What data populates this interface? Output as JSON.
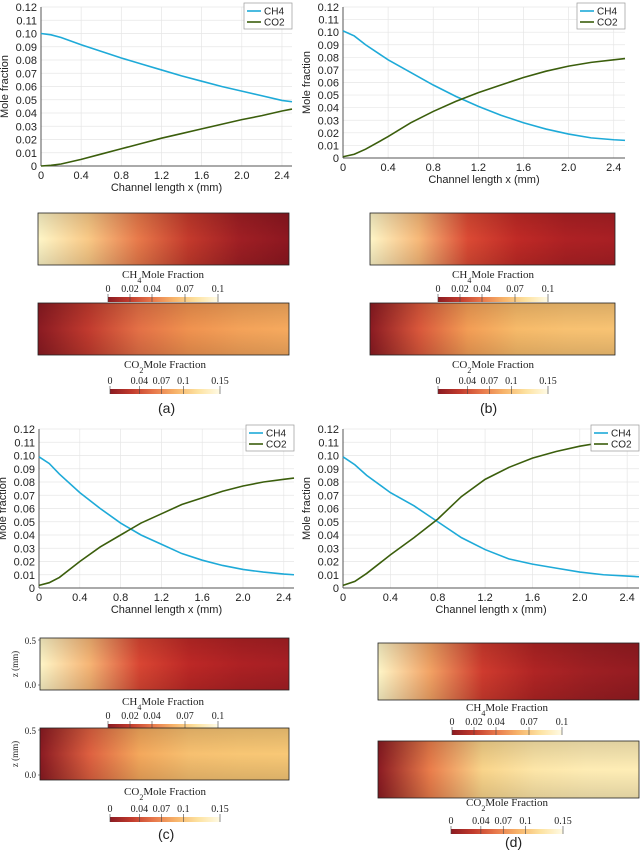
{
  "chart_data": [
    {
      "id": "a",
      "type": "line",
      "xlabel": "Channel length x (mm)",
      "ylabel": "Mole fraction",
      "xlim": [
        0,
        2.5
      ],
      "ylim": [
        0,
        0.12
      ],
      "xticks": [
        "0",
        "0.4",
        "0.8",
        "1.2",
        "1.6",
        "2.0",
        "2.4"
      ],
      "yticks": [
        "0",
        "0.01",
        "0.02",
        "0.03",
        "0.04",
        "0.05",
        "0.06",
        "0.07",
        "0.08",
        "0.09",
        "0.10",
        "0.11",
        "0.12"
      ],
      "grid": true,
      "legend": "top-right",
      "series": [
        {
          "name": "CH4",
          "color": "#1eaad8",
          "x": [
            0,
            0.1,
            0.2,
            0.4,
            0.6,
            0.8,
            1.0,
            1.2,
            1.4,
            1.6,
            1.8,
            2.0,
            2.2,
            2.4,
            2.5
          ],
          "y": [
            0.1,
            0.099,
            0.097,
            0.0915,
            0.0865,
            0.0815,
            0.077,
            0.0725,
            0.068,
            0.064,
            0.06,
            0.0565,
            0.053,
            0.0495,
            0.0485
          ]
        },
        {
          "name": "CO2",
          "color": "#3b5e0c",
          "x": [
            0,
            0.1,
            0.2,
            0.4,
            0.6,
            0.8,
            1.0,
            1.2,
            1.4,
            1.6,
            1.8,
            2.0,
            2.2,
            2.4,
            2.5
          ],
          "y": [
            0.0,
            0.0005,
            0.0015,
            0.005,
            0.009,
            0.013,
            0.017,
            0.021,
            0.0245,
            0.028,
            0.0315,
            0.035,
            0.038,
            0.0415,
            0.043
          ]
        }
      ]
    },
    {
      "id": "b",
      "type": "line",
      "xlabel": "Channel length x (mm)",
      "ylabel": "Mole fraction",
      "xlim": [
        0,
        2.5
      ],
      "ylim": [
        0,
        0.12
      ],
      "xticks": [
        "0",
        "0.4",
        "0.8",
        "1.2",
        "1.6",
        "2.0",
        "2.4"
      ],
      "yticks": [
        "0",
        "0.01",
        "0.02",
        "0.03",
        "0.04",
        "0.05",
        "0.06",
        "0.07",
        "0.08",
        "0.09",
        "0.10",
        "0.11",
        "0.12"
      ],
      "grid": true,
      "legend": "top-right",
      "series": [
        {
          "name": "CH4",
          "color": "#1eaad8",
          "x": [
            0,
            0.1,
            0.2,
            0.4,
            0.6,
            0.8,
            1.0,
            1.2,
            1.4,
            1.6,
            1.8,
            2.0,
            2.2,
            2.4,
            2.5
          ],
          "y": [
            0.101,
            0.097,
            0.09,
            0.078,
            0.068,
            0.058,
            0.049,
            0.041,
            0.034,
            0.028,
            0.023,
            0.019,
            0.016,
            0.0145,
            0.014
          ]
        },
        {
          "name": "CO2",
          "color": "#3b5e0c",
          "x": [
            0,
            0.1,
            0.2,
            0.4,
            0.6,
            0.8,
            1.0,
            1.2,
            1.4,
            1.6,
            1.8,
            2.0,
            2.2,
            2.4,
            2.5
          ],
          "y": [
            0.001,
            0.003,
            0.007,
            0.017,
            0.028,
            0.037,
            0.045,
            0.052,
            0.058,
            0.064,
            0.069,
            0.073,
            0.076,
            0.078,
            0.079
          ]
        }
      ]
    },
    {
      "id": "c",
      "type": "line",
      "xlabel": "Channel length x (mm)",
      "ylabel": "Mole fraction",
      "xlim": [
        0,
        2.5
      ],
      "ylim": [
        0,
        0.12
      ],
      "xticks": [
        "0",
        "0.4",
        "0.8",
        "1.2",
        "1.6",
        "2.0",
        "2.4"
      ],
      "yticks": [
        "0",
        "0.01",
        "0.02",
        "0.03",
        "0.04",
        "0.05",
        "0.06",
        "0.07",
        "0.08",
        "0.09",
        "0.10",
        "0.11",
        "0.12"
      ],
      "grid": true,
      "legend": "top-right",
      "series": [
        {
          "name": "CH4",
          "color": "#1eaad8",
          "x": [
            0,
            0.1,
            0.2,
            0.4,
            0.6,
            0.8,
            1.0,
            1.2,
            1.4,
            1.6,
            1.8,
            2.0,
            2.2,
            2.4,
            2.5
          ],
          "y": [
            0.099,
            0.094,
            0.086,
            0.072,
            0.06,
            0.049,
            0.04,
            0.033,
            0.026,
            0.021,
            0.017,
            0.014,
            0.012,
            0.0105,
            0.01
          ]
        },
        {
          "name": "CO2",
          "color": "#3b5e0c",
          "x": [
            0,
            0.1,
            0.2,
            0.4,
            0.6,
            0.8,
            1.0,
            1.2,
            1.4,
            1.6,
            1.8,
            2.0,
            2.2,
            2.4,
            2.5
          ],
          "y": [
            0.002,
            0.004,
            0.008,
            0.02,
            0.031,
            0.04,
            0.049,
            0.056,
            0.063,
            0.068,
            0.073,
            0.077,
            0.08,
            0.082,
            0.083
          ]
        }
      ]
    },
    {
      "id": "d",
      "type": "line",
      "xlabel": "Channel length x (mm)",
      "ylabel": "Mole fraction",
      "xlim": [
        0,
        2.5
      ],
      "ylim": [
        0,
        0.12
      ],
      "xticks": [
        "0",
        "0.4",
        "0.8",
        "1.2",
        "1.6",
        "2.0",
        "2.4"
      ],
      "yticks": [
        "0",
        "0.01",
        "0.02",
        "0.03",
        "0.04",
        "0.05",
        "0.06",
        "0.07",
        "0.08",
        "0.09",
        "0.10",
        "0.11",
        "0.12"
      ],
      "grid": true,
      "legend": "top-right",
      "series": [
        {
          "name": "CH4",
          "color": "#1eaad8",
          "x": [
            0,
            0.1,
            0.2,
            0.4,
            0.6,
            0.8,
            1.0,
            1.2,
            1.4,
            1.6,
            1.8,
            2.0,
            2.2,
            2.4,
            2.5
          ],
          "y": [
            0.099,
            0.093,
            0.085,
            0.072,
            0.062,
            0.05,
            0.038,
            0.029,
            0.022,
            0.018,
            0.015,
            0.012,
            0.01,
            0.009,
            0.0085
          ]
        },
        {
          "name": "CO2",
          "color": "#3b5e0c",
          "x": [
            0,
            0.1,
            0.2,
            0.4,
            0.6,
            0.8,
            1.0,
            1.2,
            1.4,
            1.6,
            1.8,
            2.0,
            2.2,
            2.4,
            2.5
          ],
          "y": [
            0.002,
            0.005,
            0.011,
            0.025,
            0.038,
            0.052,
            0.069,
            0.082,
            0.091,
            0.098,
            0.103,
            0.107,
            0.11,
            0.112,
            0.113
          ]
        }
      ]
    }
  ],
  "colorbars": {
    "ch4": {
      "title_pre": "CH",
      "title_sub": "4",
      "title_post": "Mole Fraction",
      "ticks": [
        "0",
        "0.02",
        "0.04",
        "0.07",
        "0.1"
      ],
      "tick_values": [
        0,
        0.02,
        0.04,
        0.07,
        0.1
      ],
      "range": [
        0,
        0.1
      ]
    },
    "co2": {
      "title_pre": "CO",
      "title_sub": "2",
      "title_post": "Mole Fraction",
      "ticks": [
        "0",
        "0.04",
        "0.07",
        "0.1",
        "0.15"
      ],
      "tick_values": [
        0,
        0.04,
        0.07,
        0.1,
        0.15
      ],
      "range": [
        0,
        0.15
      ]
    }
  },
  "contours": {
    "z_axis_label": "z (mm)",
    "z_ticks": [
      "0.5",
      "0.0"
    ],
    "a": {
      "ch4_colors": [
        "#fef6c8",
        "#f9c986",
        "#e8794a",
        "#c43a2c",
        "#a01f24",
        "#8d1720"
      ],
      "co2_colors": [
        "#8a1a22",
        "#c13a2e",
        "#e47046",
        "#f0924f",
        "#f4a259",
        "#f6aa5e"
      ]
    },
    "b": {
      "ch4_colors": [
        "#fef6c8",
        "#f7b878",
        "#db4a34",
        "#c02a26",
        "#ae2124",
        "#a81f24"
      ],
      "co2_colors": [
        "#8a1a22",
        "#d9573b",
        "#f39d55",
        "#f7ba69",
        "#f8c171",
        "#f8c373"
      ]
    },
    "c": {
      "ch4_colors": [
        "#fef6c8",
        "#f6b474",
        "#d94633",
        "#bd2826",
        "#ae2124",
        "#a61f24"
      ],
      "co2_colors": [
        "#8a1a22",
        "#de6040",
        "#f4a85c",
        "#f7c070",
        "#f8c674",
        "#f8c876"
      ]
    },
    "d": {
      "ch4_colors": [
        "#fef6c8",
        "#f2a264",
        "#cf3b2e",
        "#b02424",
        "#9e1f23",
        "#941b21"
      ],
      "co2_colors": [
        "#8a1a22",
        "#ea7d4b",
        "#f9d48a",
        "#fde6a8",
        "#feecb4",
        "#feedb6"
      ]
    }
  },
  "sublabels": {
    "a": "(a)",
    "b": "(b)",
    "c": "(c)",
    "d": "(d)"
  }
}
